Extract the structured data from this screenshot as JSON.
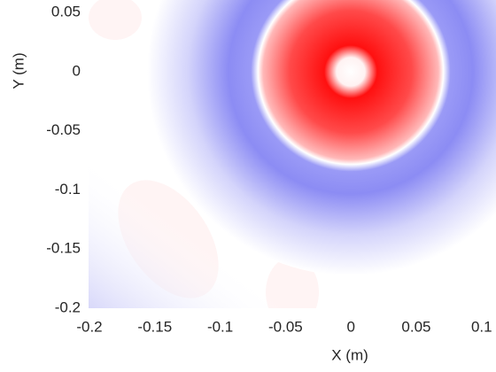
{
  "chart_data": {
    "type": "field",
    "x_label": "X (m)",
    "y_label": "Y (m)",
    "xlim": [
      -0.2,
      0.111
    ],
    "ylim": [
      -0.2,
      0.0605
    ],
    "xticks": [
      -0.2,
      -0.15,
      -0.1,
      -0.05,
      0,
      0.05,
      0.1
    ],
    "yticks": [
      0.05,
      0,
      -0.05,
      -0.1,
      -0.15,
      -0.2
    ]
  }
}
